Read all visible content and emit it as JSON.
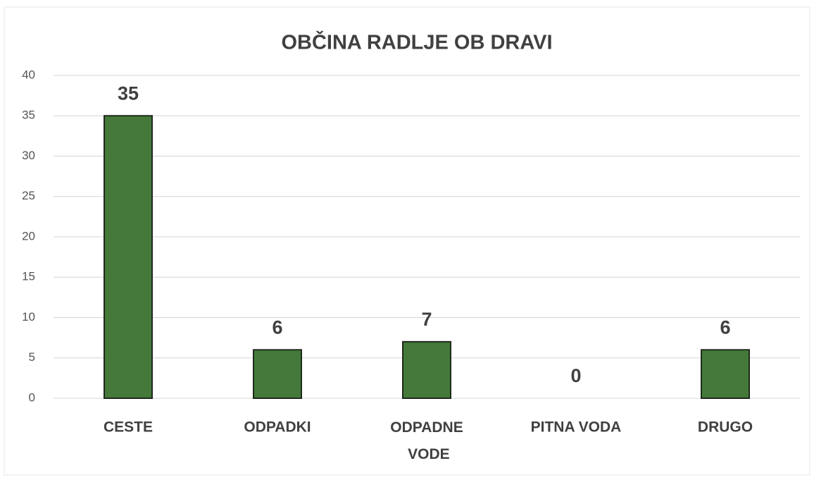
{
  "chart_data": {
    "type": "bar",
    "title": "OBČINA RADLJE OB DRAVI",
    "categories": [
      "CESTE",
      "ODPADKI",
      "ODPADNE VODE",
      "PITNA VODA",
      "DRUGO"
    ],
    "values": [
      35,
      6,
      7,
      0,
      6
    ],
    "color": "#44793a",
    "ylim": [
      0,
      40
    ],
    "yticks": [
      0,
      5,
      10,
      15,
      20,
      25,
      30,
      35,
      40
    ],
    "grid": true
  }
}
